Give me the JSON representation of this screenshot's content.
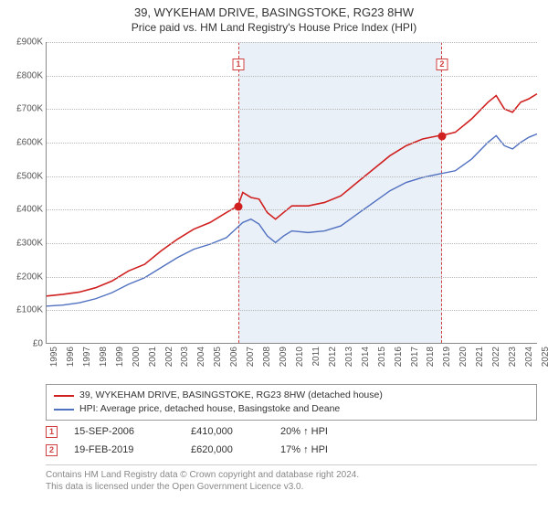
{
  "title": {
    "main": "39, WYKEHAM DRIVE, BASINGSTOKE, RG23 8HW",
    "sub": "Price paid vs. HM Land Registry's House Price Index (HPI)"
  },
  "chart": {
    "type": "line",
    "x_start_year": 1995,
    "x_end_year": 2025,
    "y_min": 0,
    "y_max": 900000,
    "y_tick_step": 100000,
    "y_tick_labels": [
      "£0",
      "£100K",
      "£200K",
      "£300K",
      "£400K",
      "£500K",
      "£600K",
      "£700K",
      "£800K",
      "£900K"
    ],
    "x_tick_labels": [
      "1995",
      "1996",
      "1997",
      "1998",
      "1999",
      "2000",
      "2001",
      "2002",
      "2003",
      "2004",
      "2005",
      "2006",
      "2007",
      "2008",
      "2009",
      "2010",
      "2011",
      "2012",
      "2013",
      "2014",
      "2015",
      "2016",
      "2017",
      "2018",
      "2019",
      "2020",
      "2021",
      "2022",
      "2023",
      "2024",
      "2025"
    ],
    "grid_color": "#b8b8b8",
    "background_color": "#ffffff",
    "highlight_band": {
      "start_year": 2006.71,
      "end_year": 2019.14,
      "fill": "#b4c8e6",
      "opacity": 0.28,
      "border_color": "#d04040"
    },
    "series": [
      {
        "name": "39, WYKEHAM DRIVE, BASINGSTOKE, RG23 8HW (detached house)",
        "color": "#d02020",
        "line_width": 1.6,
        "data": [
          [
            1995,
            140000
          ],
          [
            1996,
            145000
          ],
          [
            1997,
            152000
          ],
          [
            1998,
            165000
          ],
          [
            1999,
            185000
          ],
          [
            2000,
            215000
          ],
          [
            2001,
            235000
          ],
          [
            2002,
            275000
          ],
          [
            2003,
            310000
          ],
          [
            2004,
            340000
          ],
          [
            2005,
            360000
          ],
          [
            2006,
            390000
          ],
          [
            2006.71,
            410000
          ],
          [
            2007,
            450000
          ],
          [
            2007.5,
            435000
          ],
          [
            2008,
            430000
          ],
          [
            2008.5,
            390000
          ],
          [
            2009,
            370000
          ],
          [
            2009.5,
            390000
          ],
          [
            2010,
            410000
          ],
          [
            2011,
            410000
          ],
          [
            2012,
            420000
          ],
          [
            2013,
            440000
          ],
          [
            2014,
            480000
          ],
          [
            2015,
            520000
          ],
          [
            2016,
            560000
          ],
          [
            2017,
            590000
          ],
          [
            2018,
            610000
          ],
          [
            2019,
            620000
          ],
          [
            2019.14,
            620000
          ],
          [
            2020,
            630000
          ],
          [
            2021,
            670000
          ],
          [
            2022,
            720000
          ],
          [
            2022.5,
            740000
          ],
          [
            2023,
            700000
          ],
          [
            2023.5,
            690000
          ],
          [
            2024,
            720000
          ],
          [
            2024.5,
            730000
          ],
          [
            2025,
            745000
          ]
        ]
      },
      {
        "name": "HPI: Average price, detached house, Basingstoke and Deane",
        "color": "#5070c0",
        "line_width": 1.4,
        "data": [
          [
            1995,
            110000
          ],
          [
            1996,
            113000
          ],
          [
            1997,
            120000
          ],
          [
            1998,
            132000
          ],
          [
            1999,
            150000
          ],
          [
            2000,
            175000
          ],
          [
            2001,
            195000
          ],
          [
            2002,
            225000
          ],
          [
            2003,
            255000
          ],
          [
            2004,
            280000
          ],
          [
            2005,
            295000
          ],
          [
            2006,
            315000
          ],
          [
            2007,
            360000
          ],
          [
            2007.5,
            370000
          ],
          [
            2008,
            355000
          ],
          [
            2008.5,
            320000
          ],
          [
            2009,
            300000
          ],
          [
            2009.5,
            320000
          ],
          [
            2010,
            335000
          ],
          [
            2011,
            330000
          ],
          [
            2012,
            335000
          ],
          [
            2013,
            350000
          ],
          [
            2014,
            385000
          ],
          [
            2015,
            420000
          ],
          [
            2016,
            455000
          ],
          [
            2017,
            480000
          ],
          [
            2018,
            495000
          ],
          [
            2019,
            505000
          ],
          [
            2020,
            515000
          ],
          [
            2021,
            550000
          ],
          [
            2022,
            600000
          ],
          [
            2022.5,
            620000
          ],
          [
            2023,
            590000
          ],
          [
            2023.5,
            580000
          ],
          [
            2024,
            600000
          ],
          [
            2024.5,
            615000
          ],
          [
            2025,
            625000
          ]
        ]
      }
    ],
    "sale_markers": [
      {
        "n": "1",
        "year": 2006.71,
        "price": 410000
      },
      {
        "n": "2",
        "year": 2019.14,
        "price": 620000
      }
    ]
  },
  "sales": [
    {
      "n": "1",
      "date": "15-SEP-2006",
      "price": "£410,000",
      "hpi": "20% ↑ HPI"
    },
    {
      "n": "2",
      "date": "19-FEB-2019",
      "price": "£620,000",
      "hpi": "17% ↑ HPI"
    }
  ],
  "legend": {
    "series0": "39, WYKEHAM DRIVE, BASINGSTOKE, RG23 8HW (detached house)",
    "series1": "HPI: Average price, detached house, Basingstoke and Deane"
  },
  "footer": {
    "line1": "Contains HM Land Registry data © Crown copyright and database right 2024.",
    "line2": "This data is licensed under the Open Government Licence v3.0."
  },
  "colors": {
    "red": "#d02020",
    "blue": "#5070c0",
    "marker_border": "#d04040"
  }
}
